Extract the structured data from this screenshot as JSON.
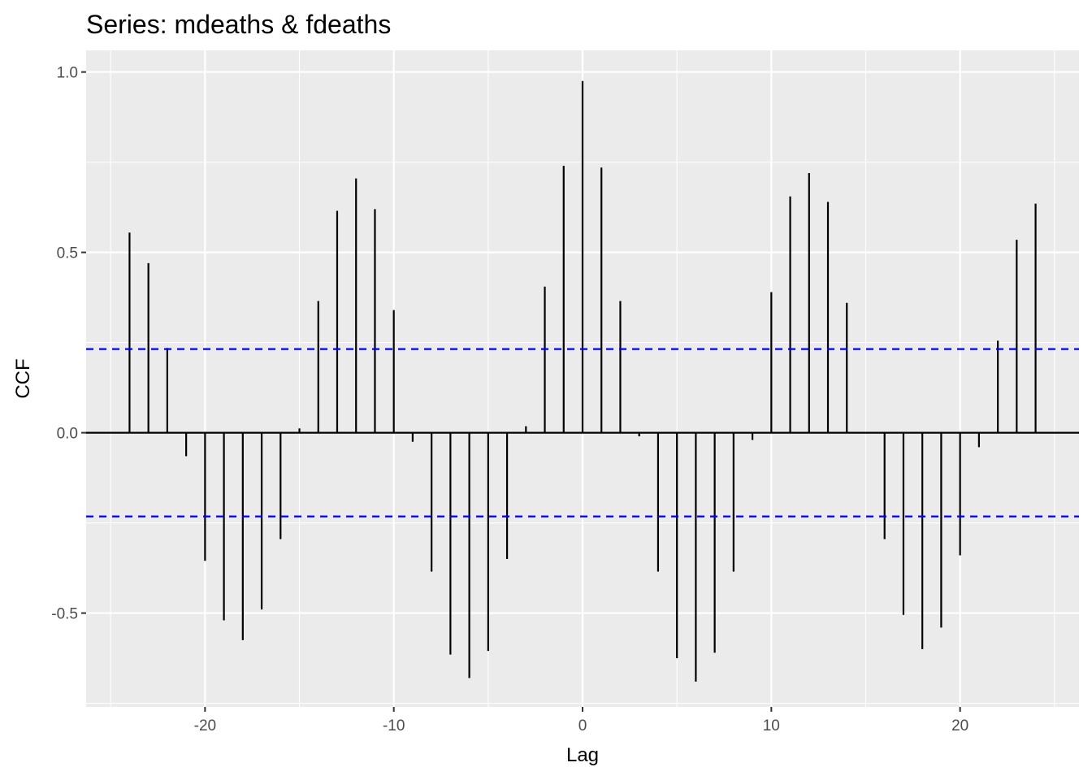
{
  "chart_data": {
    "type": "bar",
    "title": "Series: mdeaths & fdeaths",
    "xlabel": "Lag",
    "ylabel": "CCF",
    "xlim": [
      -26.3,
      26.3
    ],
    "ylim": [
      -0.76,
      1.06
    ],
    "xticks": [
      -20,
      -10,
      0,
      10,
      20
    ],
    "xtick_labels": [
      "-20",
      "-10",
      "0",
      "10",
      "20"
    ],
    "yticks": [
      -0.5,
      0.0,
      0.5,
      1.0
    ],
    "ytick_labels": [
      "-0.5",
      "0.0",
      "0.5",
      "1.0"
    ],
    "grid": true,
    "legend": "none",
    "confidence_bounds": [
      0.232,
      -0.232
    ],
    "x": [
      -24,
      -23,
      -22,
      -21,
      -20,
      -19,
      -18,
      -17,
      -16,
      -15,
      -14,
      -13,
      -12,
      -11,
      -10,
      -9,
      -8,
      -7,
      -6,
      -5,
      -4,
      -3,
      -2,
      -1,
      0,
      1,
      2,
      3,
      4,
      5,
      6,
      7,
      8,
      9,
      10,
      11,
      12,
      13,
      14,
      15,
      16,
      17,
      18,
      19,
      20,
      21,
      22,
      23,
      24
    ],
    "values": [
      0.555,
      0.47,
      0.235,
      -0.065,
      -0.355,
      -0.52,
      -0.575,
      -0.49,
      -0.295,
      0.012,
      0.365,
      0.615,
      0.705,
      0.62,
      0.34,
      -0.025,
      -0.385,
      -0.615,
      -0.68,
      -0.605,
      -0.35,
      0.018,
      0.405,
      0.74,
      0.975,
      0.735,
      0.365,
      -0.01,
      -0.385,
      -0.625,
      -0.69,
      -0.61,
      -0.385,
      -0.02,
      0.39,
      0.655,
      0.72,
      0.64,
      0.36,
      0.0,
      -0.295,
      -0.505,
      -0.6,
      -0.54,
      -0.34,
      -0.04,
      0.255,
      0.535,
      0.635
    ]
  },
  "colors": {
    "panel_bg": "#ebebeb",
    "grid": "#ffffff",
    "bars": "#000000",
    "zero_line": "#000000",
    "bounds": "#0000ff"
  }
}
